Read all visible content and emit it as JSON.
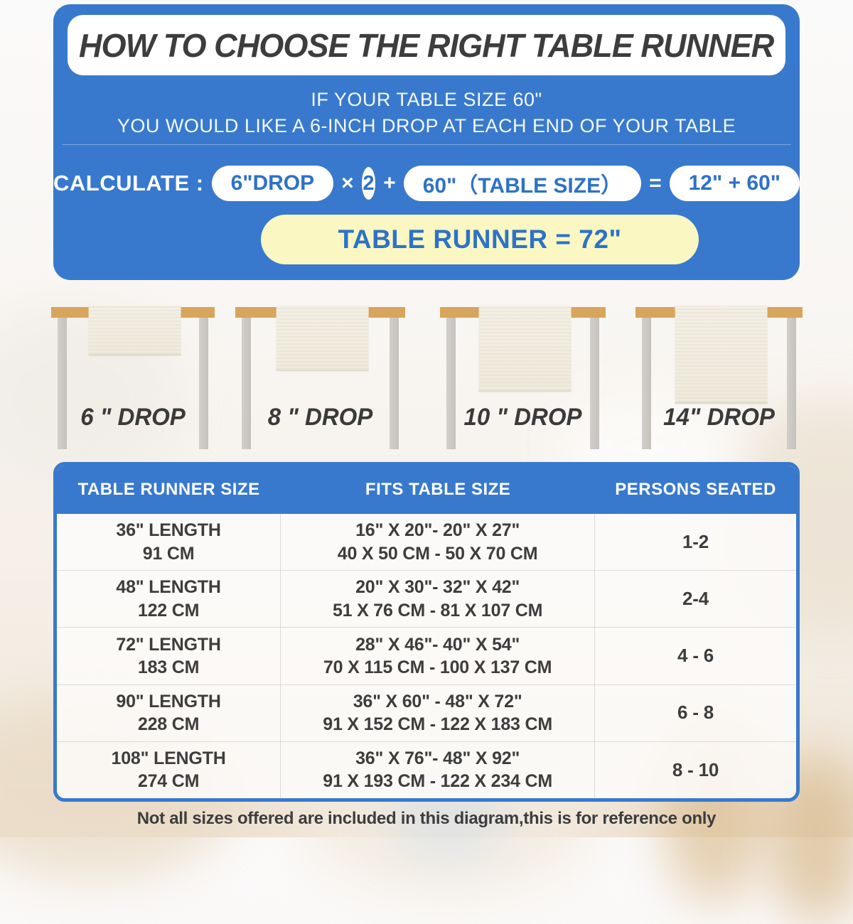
{
  "colors": {
    "panel_blue": "#3879CD",
    "pill_text_blue": "#2E72C6",
    "result_yellow": "#FAF7C3",
    "tabletop_wood": "#D8A55C",
    "leg_gray": "#C9C5C0",
    "runner_cream": "#F1ECE0",
    "text_dark": "#3D3D3D"
  },
  "header": {
    "title": "HOW TO CHOOSE THE RIGHT TABLE RUNNER",
    "intro_line1": "IF YOUR TABLE SIZE 60\"",
    "intro_line2": "YOU WOULD LIKE A 6-INCH DROP AT EACH END OF YOUR TABLE",
    "calc_label": "CALCULATE :",
    "calc_drop": "6\"DROP",
    "calc_times": "×",
    "calc_multiplier": "2",
    "calc_plus": "+",
    "calc_table_size": "60\"（TABLE SIZE）",
    "calc_equals": "=",
    "calc_sum": "12\" + 60\"",
    "calc_result": "TABLE RUNNER = 72\""
  },
  "drops": [
    {
      "label": "6 \" DROP"
    },
    {
      "label": "8 \" DROP"
    },
    {
      "label": "10 \" DROP"
    },
    {
      "label": "14\" DROP"
    }
  ],
  "size_table": {
    "columns": [
      "TABLE RUNNER SIZE",
      "FITS TABLE SIZE",
      "PERSONS SEATED"
    ],
    "rows": [
      {
        "runner_size": [
          "36\" LENGTH",
          "91 CM"
        ],
        "fits": [
          "16\" X 20\"- 20\" X 27\"",
          "40 X 50 CM - 50 X 70 CM"
        ],
        "persons": "1-2"
      },
      {
        "runner_size": [
          "48\" LENGTH",
          "122 CM"
        ],
        "fits": [
          "20\" X 30\"- 32\" X 42\"",
          "51 X 76 CM - 81 X 107 CM"
        ],
        "persons": "2-4"
      },
      {
        "runner_size": [
          "72\" LENGTH",
          "183 CM"
        ],
        "fits": [
          "28\" X 46\"- 40\" X 54\"",
          "70 X 115 CM - 100 X 137 CM"
        ],
        "persons": "4 - 6"
      },
      {
        "runner_size": [
          "90\" LENGTH",
          "228 CM"
        ],
        "fits": [
          "36\" X 60\" - 48\" X 72\"",
          "91 X 152 CM - 122 X 183 CM"
        ],
        "persons": "6 - 8"
      },
      {
        "runner_size": [
          "108\" LENGTH",
          "274 CM"
        ],
        "fits": [
          "36\" X 76\"- 48\" X 92\"",
          "91 X 193 CM - 122 X 234 CM"
        ],
        "persons": "8 - 10"
      }
    ]
  },
  "footer_note": "Not all sizes offered are included in this diagram,this is for reference only"
}
